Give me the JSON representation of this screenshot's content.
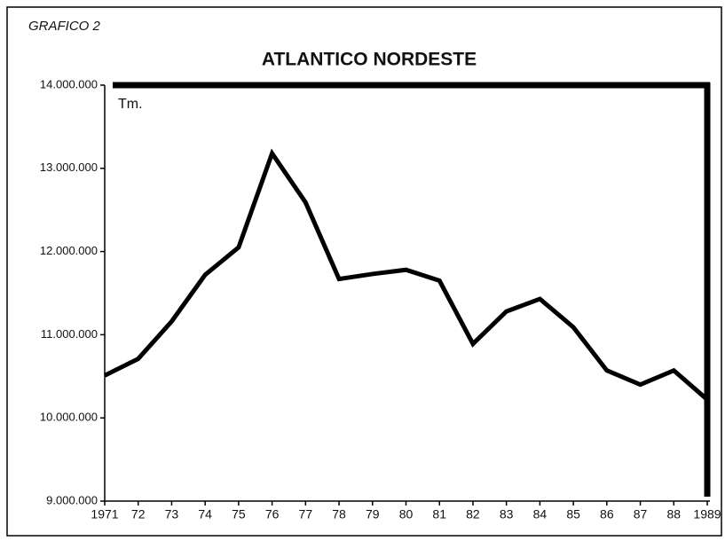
{
  "chart_data": {
    "type": "line",
    "header": "GRAFICO 2",
    "title": "ATLANTICO NORDESTE",
    "y_unit": "Tm.",
    "categories": [
      "1971",
      "72",
      "73",
      "74",
      "75",
      "76",
      "77",
      "78",
      "79",
      "80",
      "81",
      "82",
      "83",
      "84",
      "85",
      "86",
      "87",
      "88",
      "1989"
    ],
    "values": [
      10510000,
      10710000,
      11160000,
      11720000,
      12050000,
      13180000,
      12590000,
      11670000,
      11730000,
      11780000,
      11650000,
      10890000,
      11280000,
      11430000,
      11090000,
      10570000,
      10400000,
      10570000,
      10220000
    ],
    "color": "#000000",
    "ylim": [
      9000000,
      14000000
    ],
    "yticks": [
      {
        "value": 9000000,
        "label": "9.000.000"
      },
      {
        "value": 10000000,
        "label": "10.000.000"
      },
      {
        "value": 11000000,
        "label": "11.000.000"
      },
      {
        "value": 12000000,
        "label": "12.000.000"
      },
      {
        "value": 13000000,
        "label": "13.000.000"
      },
      {
        "value": 14000000,
        "label": "14.000.000"
      }
    ]
  }
}
